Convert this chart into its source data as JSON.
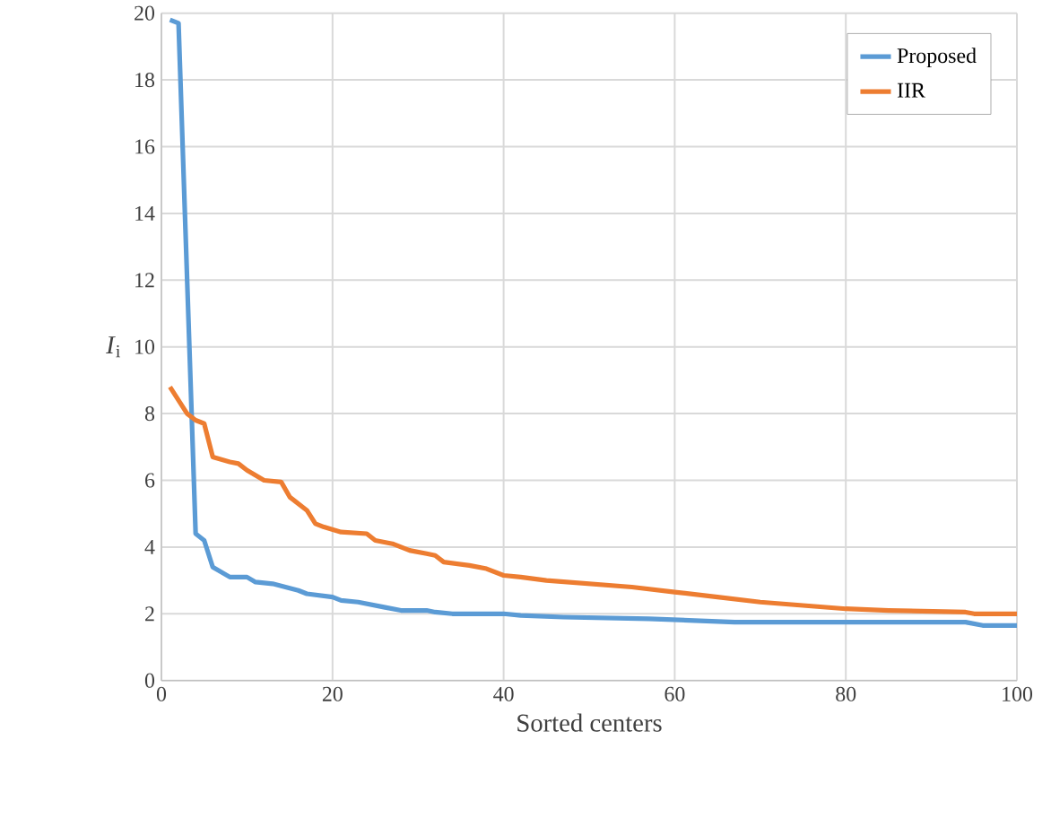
{
  "chart_data": {
    "type": "line",
    "xlabel": "Sorted centers",
    "ylabel": "*I*$_{i}$",
    "xlim": [
      0,
      100
    ],
    "ylim": [
      0,
      20
    ],
    "xticks": [
      0,
      20,
      40,
      60,
      80,
      100
    ],
    "yticks": [
      0,
      2,
      4,
      6,
      8,
      10,
      12,
      14,
      16,
      18,
      20
    ],
    "grid": true,
    "legend": "top right",
    "marker": "none",
    "line_style": "solid",
    "series": [
      {
        "name": "Proposed",
        "color": "#5b9bd5",
        "x": [
          1,
          2,
          4,
          5,
          6,
          8,
          10,
          11,
          13,
          16,
          17,
          20,
          21,
          23,
          26,
          28,
          31,
          32,
          34,
          40,
          42,
          47,
          57,
          67,
          80,
          94,
          96,
          100
        ],
        "values": [
          19.8,
          19.7,
          4.4,
          4.2,
          3.4,
          3.1,
          3.1,
          2.95,
          2.9,
          2.7,
          2.6,
          2.5,
          2.4,
          2.35,
          2.2,
          2.1,
          2.1,
          2.05,
          2.0,
          2.0,
          1.95,
          1.9,
          1.85,
          1.75,
          1.75,
          1.75,
          1.65,
          1.65
        ]
      },
      {
        "name": "IIR",
        "color": "#ed7d31",
        "x": [
          1,
          3,
          4,
          5,
          6,
          8,
          9,
          10,
          12,
          14,
          15,
          17,
          18,
          19,
          21,
          24,
          25,
          27,
          29,
          31,
          32,
          33,
          36,
          38,
          40,
          42,
          45,
          50,
          55,
          60,
          65,
          70,
          75,
          80,
          85,
          94,
          95,
          100
        ],
        "values": [
          8.8,
          8.0,
          7.8,
          7.7,
          6.7,
          6.55,
          6.5,
          6.3,
          6.0,
          5.95,
          5.5,
          5.1,
          4.7,
          4.6,
          4.45,
          4.4,
          4.2,
          4.1,
          3.9,
          3.8,
          3.75,
          3.55,
          3.45,
          3.35,
          3.15,
          3.1,
          3.0,
          2.9,
          2.8,
          2.65,
          2.5,
          2.35,
          2.25,
          2.15,
          2.1,
          2.05,
          2.0,
          2.0
        ]
      }
    ]
  }
}
